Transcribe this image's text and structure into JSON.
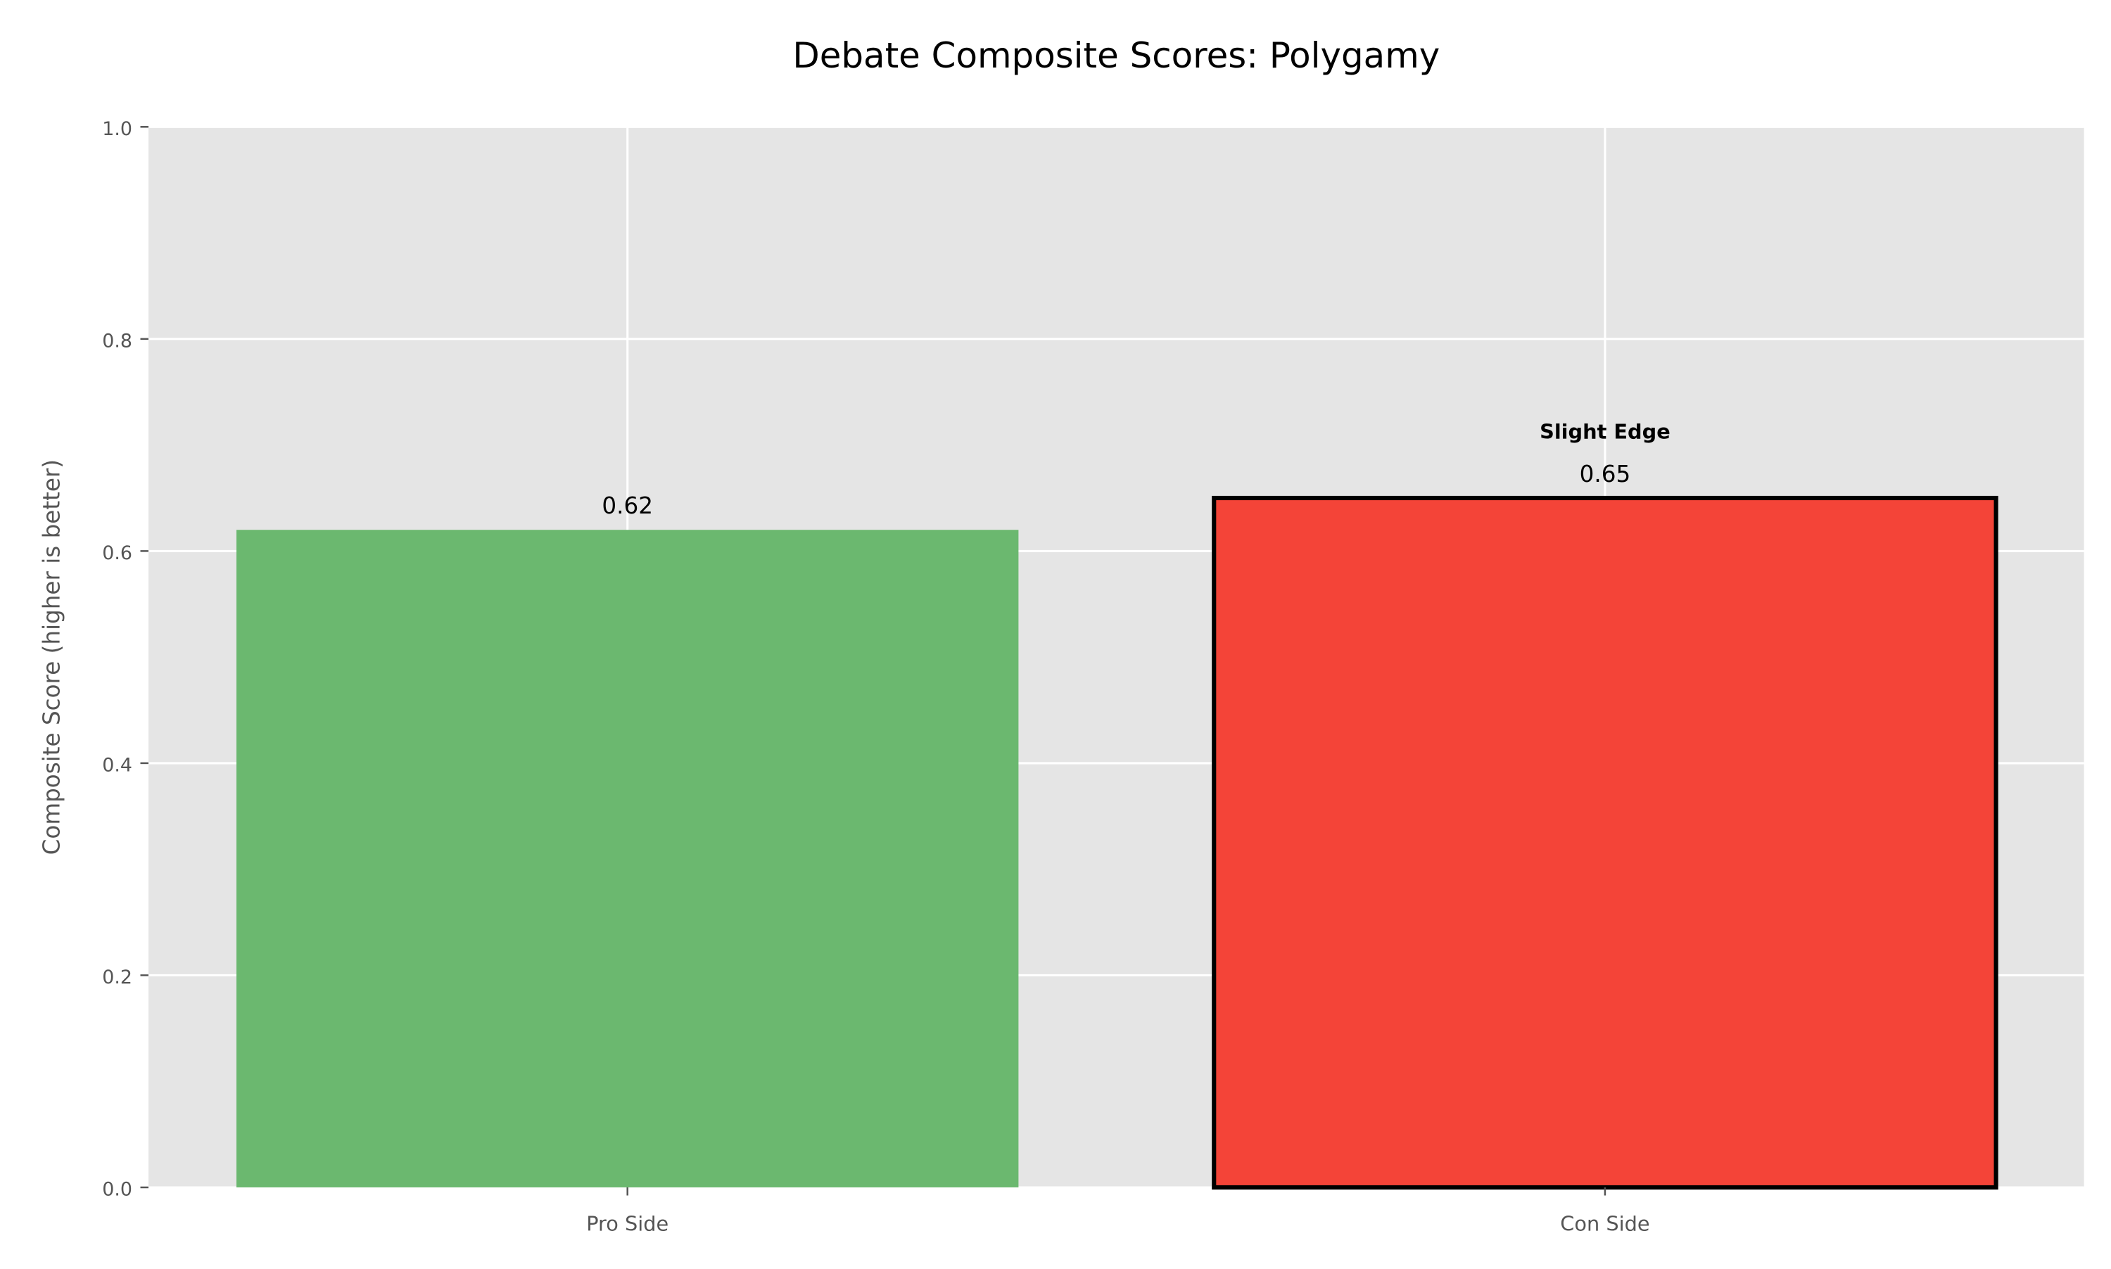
{
  "chart_data": {
    "type": "bar",
    "title": "Debate Composite Scores: Polygamy",
    "xlabel": "",
    "ylabel": "Composite Score (higher is better)",
    "categories": [
      "Pro Side",
      "Con Side"
    ],
    "values": [
      0.62,
      0.65
    ],
    "value_labels": [
      "0.62",
      "0.65"
    ],
    "bar_colors": [
      "#6bb86f",
      "#f44438"
    ],
    "highlight_index": 1,
    "highlight_edge_color": "#000000",
    "annotations": [
      {
        "category_index": 1,
        "text": "Slight Edge",
        "bold": true
      }
    ],
    "ylim": [
      0,
      1.0
    ],
    "yticks": [
      0.0,
      0.2,
      0.4,
      0.6,
      0.8,
      1.0
    ],
    "ytick_labels": [
      "0.0",
      "0.2",
      "0.4",
      "0.6",
      "0.8",
      "1.0"
    ],
    "grid": true,
    "legend": "none",
    "colors": {
      "plot_background": "#e5e5e5",
      "grid": "#ffffff",
      "tick_text": "#555555",
      "title_text": "#000000"
    }
  }
}
